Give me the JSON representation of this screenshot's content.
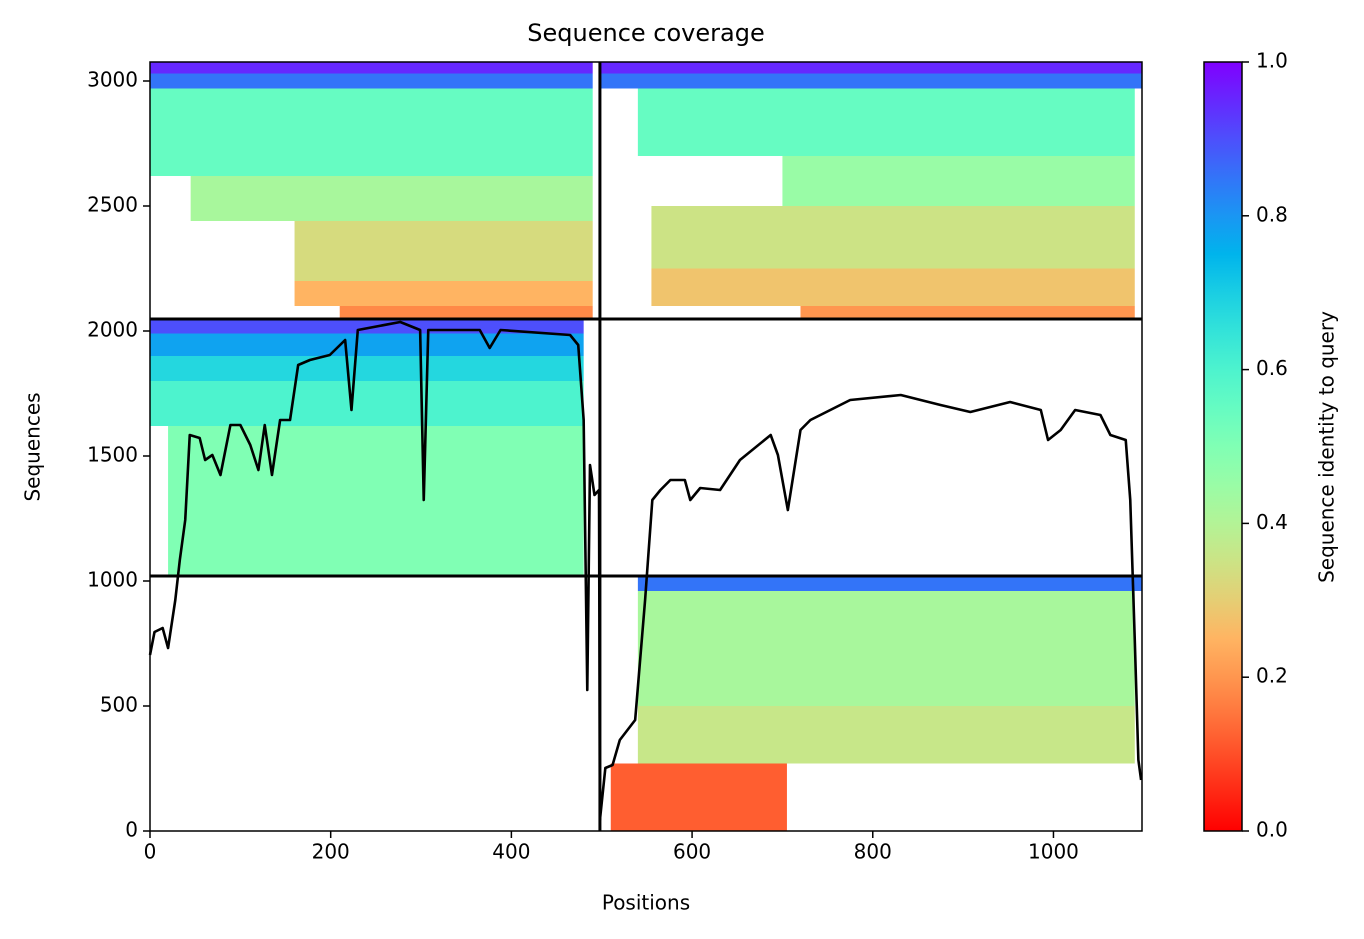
{
  "chart_data": {
    "type": "coverage",
    "title": "Sequence coverage",
    "x_label": "Positions",
    "y_label": "Sequences",
    "colorbar_label": "Sequence identity to query",
    "xlim": [
      0,
      1098
    ],
    "ylim": [
      0,
      3076
    ],
    "xticks": [
      0,
      200,
      400,
      600,
      800,
      1000
    ],
    "yticks": [
      0,
      500,
      1000,
      1500,
      2000,
      2500,
      3000
    ],
    "clim": [
      0,
      1
    ],
    "cticks": [
      {
        "value": 0,
        "label": "0.0"
      },
      0.2,
      0.4,
      0.6,
      0.8,
      {
        "value": 1,
        "label": "1.0"
      }
    ],
    "colormap": "rainbow_r",
    "line_color": "#000000",
    "chain_boundaries": {
      "x": [
        498
      ],
      "y": [
        1020,
        2048
      ]
    },
    "blocks": [
      {
        "x": [
          0,
          490
        ],
        "y": [
          3030,
          3076
        ],
        "identity": 0.95
      },
      {
        "x": [
          0,
          490
        ],
        "y": [
          2970,
          3030
        ],
        "identity": 0.85
      },
      {
        "x": [
          0,
          490
        ],
        "y": [
          2620,
          2970
        ],
        "identity": 0.55
      },
      {
        "x": [
          45,
          490
        ],
        "y": [
          2440,
          2620
        ],
        "identity": 0.42
      },
      {
        "x": [
          160,
          490
        ],
        "y": [
          2200,
          2440
        ],
        "identity": 0.33
      },
      {
        "x": [
          160,
          490
        ],
        "y": [
          2100,
          2200
        ],
        "identity": 0.25
      },
      {
        "x": [
          210,
          490
        ],
        "y": [
          2048,
          2100
        ],
        "identity": 0.18
      },
      {
        "x": [
          498,
          1098
        ],
        "y": [
          3030,
          3076
        ],
        "identity": 0.95
      },
      {
        "x": [
          498,
          1098
        ],
        "y": [
          2970,
          3030
        ],
        "identity": 0.85
      },
      {
        "x": [
          540,
          1090
        ],
        "y": [
          2700,
          2970
        ],
        "identity": 0.55
      },
      {
        "x": [
          700,
          1090
        ],
        "y": [
          2500,
          2700
        ],
        "identity": 0.45
      },
      {
        "x": [
          555,
          1090
        ],
        "y": [
          2250,
          2500
        ],
        "identity": 0.35
      },
      {
        "x": [
          555,
          1090
        ],
        "y": [
          2100,
          2250
        ],
        "identity": 0.28
      },
      {
        "x": [
          720,
          1090
        ],
        "y": [
          2048,
          2100
        ],
        "identity": 0.2
      },
      {
        "x": [
          0,
          480
        ],
        "y": [
          1990,
          2048
        ],
        "identity": 0.9
      },
      {
        "x": [
          0,
          480
        ],
        "y": [
          1900,
          1990
        ],
        "identity": 0.78
      },
      {
        "x": [
          0,
          480
        ],
        "y": [
          1800,
          1900
        ],
        "identity": 0.68
      },
      {
        "x": [
          0,
          480
        ],
        "y": [
          1620,
          1800
        ],
        "identity": 0.6
      },
      {
        "x": [
          20,
          480
        ],
        "y": [
          1020,
          1620
        ],
        "identity": 0.5
      },
      {
        "x": [
          540,
          1098
        ],
        "y": [
          960,
          1020
        ],
        "identity": 0.85
      },
      {
        "x": [
          540,
          1090
        ],
        "y": [
          500,
          960
        ],
        "identity": 0.42
      },
      {
        "x": [
          540,
          1090
        ],
        "y": [
          270,
          500
        ],
        "identity": 0.36
      },
      {
        "x": [
          510,
          705
        ],
        "y": [
          0,
          270
        ],
        "identity": 0.12
      }
    ],
    "coverage": {
      "x": [
        0,
        5,
        14,
        20,
        28,
        33,
        39,
        44,
        55,
        61,
        69,
        78,
        89,
        100,
        111,
        120,
        127,
        135,
        144,
        155,
        164,
        177,
        199,
        216,
        223,
        230,
        277,
        299,
        303,
        308,
        365,
        376,
        388,
        465,
        474,
        480,
        484,
        487,
        492,
        497,
        498,
        504,
        512,
        520,
        537,
        548,
        556,
        565,
        576,
        592,
        598,
        609,
        631,
        653,
        687,
        695,
        706,
        720,
        731,
        775,
        831,
        875,
        908,
        952,
        986,
        994,
        1008,
        1024,
        1052,
        1063,
        1080,
        1085,
        1090,
        1094,
        1097
      ],
      "values": [
        704,
        796,
        812,
        732,
        924,
        1084,
        1244,
        1584,
        1572,
        1484,
        1504,
        1424,
        1624,
        1624,
        1544,
        1444,
        1624,
        1424,
        1644,
        1644,
        1864,
        1884,
        1904,
        1964,
        1684,
        2004,
        2036,
        2004,
        1324,
        2004,
        2004,
        1932,
        2004,
        1984,
        1944,
        1644,
        564,
        1464,
        1344,
        1364,
        44,
        252,
        264,
        364,
        444,
        924,
        1324,
        1364,
        1404,
        1404,
        1324,
        1372,
        1364,
        1484,
        1584,
        1504,
        1284,
        1604,
        1644,
        1724,
        1744,
        1704,
        1676,
        1716,
        1684,
        1564,
        1604,
        1684,
        1664,
        1584,
        1564,
        1324,
        764,
        284,
        204
      ]
    }
  }
}
